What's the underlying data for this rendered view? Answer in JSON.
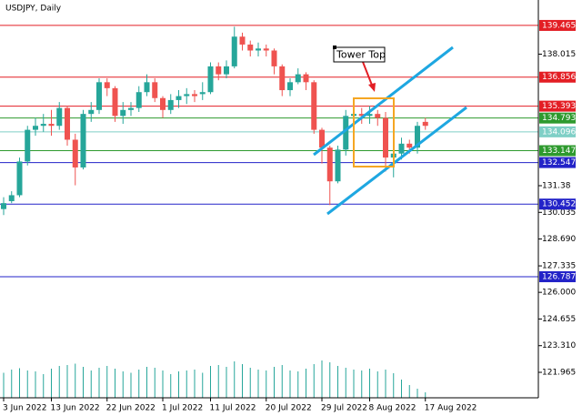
{
  "chart_data": {
    "type": "candlestick",
    "title": "USDJPY, Daily",
    "categories": [
      "3 Jun 2022",
      null,
      null,
      null,
      null,
      null,
      "13 Jun 2022",
      null,
      null,
      null,
      null,
      null,
      null,
      "22 Jun 2022",
      null,
      null,
      null,
      null,
      null,
      null,
      "1 Jul 2022",
      null,
      null,
      null,
      null,
      null,
      "11 Jul 2022",
      null,
      null,
      null,
      null,
      null,
      null,
      "20 Jul 2022",
      null,
      null,
      null,
      null,
      null,
      null,
      "29 Jul 2022",
      null,
      null,
      null,
      null,
      null,
      "8 Aug 2022",
      null,
      null,
      null,
      null,
      null,
      null,
      "17 Aug 2022"
    ],
    "open": [
      130.2,
      130.6,
      130.9,
      132.6,
      134.2,
      134.4,
      134.5,
      134.4,
      135.3,
      133.7,
      132.3,
      135.0,
      135.2,
      136.6,
      136.3,
      134.9,
      135.2,
      135.3,
      136.1,
      136.6,
      135.8,
      135.2,
      135.7,
      135.9,
      136.0,
      136.0,
      136.1,
      137.4,
      137.0,
      137.4,
      138.9,
      138.5,
      138.2,
      138.3,
      138.2,
      137.4,
      136.2,
      136.6,
      137.0,
      136.6,
      134.2,
      133.3,
      131.6,
      133.2,
      134.9,
      135.0,
      134.9,
      135.0,
      134.8,
      132.8,
      133.0,
      133.5,
      133.3,
      134.6
    ],
    "high": [
      130.8,
      131.1,
      132.8,
      134.4,
      134.8,
      135.0,
      135.2,
      135.6,
      135.4,
      134.0,
      135.2,
      135.6,
      136.8,
      136.8,
      136.4,
      135.6,
      135.6,
      136.4,
      137.0,
      136.8,
      135.9,
      136.0,
      136.2,
      136.3,
      136.2,
      136.6,
      137.6,
      137.6,
      137.7,
      139.4,
      139.1,
      138.7,
      138.6,
      138.5,
      138.3,
      137.5,
      136.8,
      137.3,
      137.1,
      136.7,
      134.3,
      133.4,
      133.4,
      135.2,
      135.5,
      135.3,
      135.4,
      135.2,
      135.1,
      133.2,
      133.8,
      133.7,
      134.6,
      134.8
    ],
    "low": [
      129.9,
      130.5,
      130.8,
      132.4,
      133.9,
      134.1,
      133.9,
      134.2,
      133.4,
      131.4,
      132.2,
      134.6,
      135.0,
      135.9,
      134.6,
      134.5,
      134.9,
      135.1,
      135.9,
      135.6,
      134.8,
      135.0,
      135.3,
      135.5,
      135.6,
      135.7,
      136.0,
      136.7,
      136.8,
      137.3,
      138.2,
      137.9,
      137.9,
      137.9,
      137.0,
      135.9,
      135.9,
      136.5,
      136.2,
      134.0,
      132.5,
      130.4,
      131.5,
      132.9,
      134.6,
      134.5,
      134.5,
      134.4,
      132.1,
      131.8,
      132.7,
      133.0,
      133.0,
      134.2
    ],
    "close": [
      130.5,
      130.9,
      132.6,
      134.2,
      134.4,
      134.5,
      134.4,
      135.3,
      133.7,
      132.3,
      135.0,
      135.2,
      136.6,
      136.3,
      134.9,
      135.2,
      135.3,
      136.1,
      136.6,
      135.8,
      135.2,
      135.7,
      135.9,
      136.0,
      135.9,
      136.1,
      137.4,
      137.0,
      137.4,
      138.9,
      138.5,
      138.2,
      138.3,
      138.2,
      137.4,
      136.2,
      136.6,
      137.0,
      136.6,
      134.2,
      133.3,
      131.6,
      133.2,
      134.9,
      135.0,
      134.9,
      135.0,
      134.8,
      132.8,
      133.0,
      133.5,
      133.3,
      134.4,
      134.4
    ],
    "volume": [
      55,
      62,
      65,
      60,
      58,
      52,
      64,
      70,
      72,
      75,
      68,
      60,
      66,
      70,
      64,
      58,
      55,
      62,
      68,
      66,
      60,
      52,
      58,
      60,
      62,
      55,
      70,
      72,
      68,
      80,
      74,
      66,
      62,
      60,
      68,
      72,
      60,
      58,
      64,
      74,
      82,
      78,
      70,
      66,
      62,
      60,
      64,
      58,
      62,
      54,
      40,
      28,
      20,
      12
    ],
    "volume_lim": [
      0,
      100
    ],
    "colors": {
      "up": "#26a69a",
      "down": "#ef5350"
    },
    "ylim": [
      120.68,
      140.61
    ],
    "yticks": [
      138.015,
      131.38,
      130.035,
      {
        "value": 128.69,
        "label": "128.690"
      },
      127.335,
      {
        "value": 126,
        "label": "126.000"
      },
      124.655,
      {
        "value": 123.31,
        "label": "123.310"
      },
      121.965
    ],
    "levels": [
      {
        "value": 139.465,
        "color": "#e31e24"
      },
      {
        "value": 136.856,
        "color": "#e31e24"
      },
      {
        "value": 135.393,
        "color": "#e31e24"
      },
      {
        "value": 134.793,
        "color": "#2e9a2e"
      },
      {
        "value": 134.096,
        "color": "#7fcfc6"
      },
      {
        "value": 133.147,
        "color": "#2e9a2e"
      },
      {
        "value": 132.547,
        "color": "#2323c8"
      },
      {
        "value": 130.452,
        "color": "#2323c8"
      },
      {
        "value": 126.787,
        "color": "#2323c8"
      }
    ],
    "annotation": "Tower Top"
  }
}
